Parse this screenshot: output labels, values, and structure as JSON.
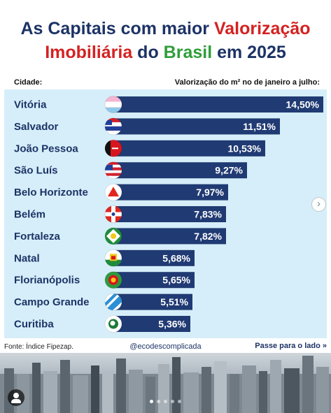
{
  "title": {
    "part1": "As Capitais com maior ",
    "part2": "Valorização",
    "part3": "Imobiliária",
    "part4": " do ",
    "part5": "Brasil",
    "part6": " em 2025"
  },
  "colors": {
    "navy": "#1d3366",
    "red": "#d42222",
    "green": "#2f9e3a",
    "bar": "#203a73",
    "panel": "#d6eef9"
  },
  "chart_data": {
    "type": "bar",
    "orientation": "horizontal",
    "header_left": "Cidade:",
    "header_right": "Valorização do m² no de janeiro a julho:",
    "categories": [
      "Vitória",
      "Salvador",
      "João Pessoa",
      "São Luís",
      "Belo Horizonte",
      "Belém",
      "Fortaleza",
      "Natal",
      "Florianópolis",
      "Campo Grande",
      "Curitiba"
    ],
    "values": [
      14.5,
      11.51,
      10.53,
      9.27,
      7.97,
      7.83,
      7.82,
      5.68,
      5.65,
      5.51,
      5.36
    ],
    "value_labels": [
      "14,50%",
      "11,51%",
      "10,53%",
      "9,27%",
      "7,97%",
      "7,83%",
      "7,82%",
      "5,68%",
      "5,65%",
      "5,51%",
      "5,36%"
    ],
    "flag_icons": [
      "vitoria-flag-icon",
      "salvador-flag-icon",
      "joao-pessoa-flag-icon",
      "sao-luis-flag-icon",
      "belo-horizonte-flag-icon",
      "belem-flag-icon",
      "fortaleza-flag-icon",
      "natal-flag-icon",
      "florianopolis-flag-icon",
      "campo-grande-flag-icon",
      "curitiba-flag-icon"
    ],
    "xlim": [
      0,
      14.5
    ],
    "grid": false,
    "legend": "none"
  },
  "footer": {
    "source": "Fonte: Índice Fipezap.",
    "handle": "@ecodescomplicada",
    "next": "Passe para o lado",
    "next_icon": "double-chevron-right-icon"
  },
  "carousel": {
    "slide": 1,
    "slides": 5
  }
}
